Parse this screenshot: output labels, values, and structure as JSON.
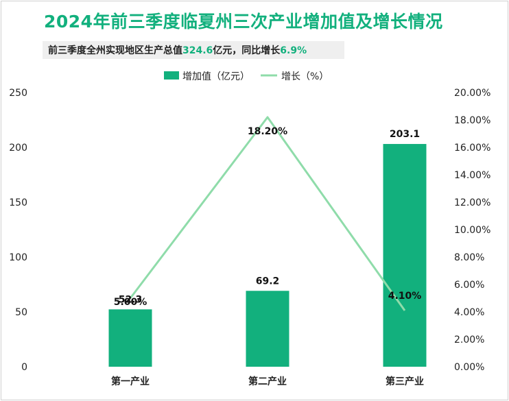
{
  "header": {
    "title": "2024年前三季度临夏州三次产业增加值及增长情况",
    "subtitle_prefix": "前三季度全州实现地区生产总值",
    "subtitle_value": "324.6",
    "subtitle_mid": "亿元，同比增长",
    "subtitle_growth": "6.9%"
  },
  "colors": {
    "bar": "#12b07d",
    "line": "#8fdcaa",
    "accent": "#12b07d"
  },
  "chart_data": {
    "type": "bar",
    "categories": [
      "第一产业",
      "第二产业",
      "第三产业"
    ],
    "series": [
      {
        "name": "增加值（亿元）",
        "type": "bar",
        "axis": "left",
        "values": [
          52.3,
          69.2,
          203.1
        ],
        "labels": [
          "52.3",
          "69.2",
          "203.1"
        ]
      },
      {
        "name": "增长（%）",
        "type": "line",
        "axis": "right",
        "values": [
          5.0,
          18.2,
          4.1
        ],
        "labels": [
          "5.00%",
          "18.20%",
          "4.10%"
        ]
      }
    ],
    "y_left": {
      "min": 0,
      "max": 250,
      "ticks": [
        "0",
        "50",
        "100",
        "150",
        "200",
        "250"
      ]
    },
    "y_right": {
      "min": 0,
      "max": 20,
      "ticks": [
        "0.00%",
        "2.00%",
        "4.00%",
        "6.00%",
        "8.00%",
        "10.00%",
        "12.00%",
        "14.00%",
        "16.00%",
        "18.00%",
        "20.00%"
      ]
    },
    "legend_position": "top-center",
    "grid": false
  }
}
